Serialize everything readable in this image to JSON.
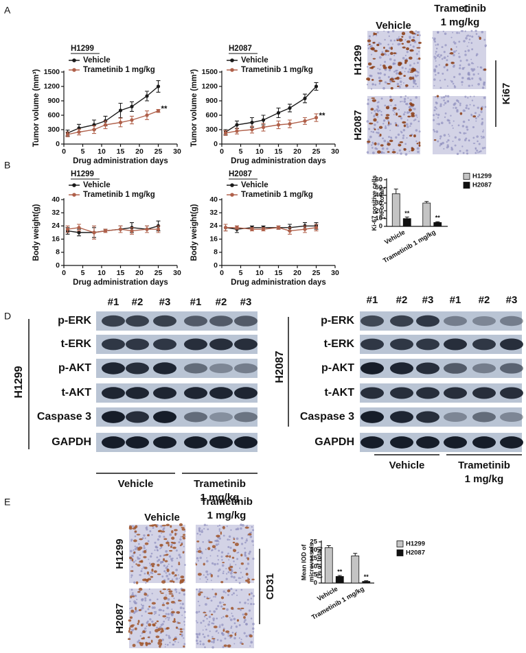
{
  "panel_labels": [
    "A",
    "B",
    "C",
    "D",
    "E"
  ],
  "chart_data": [
    {
      "type": "line",
      "title": "H1299",
      "xlabel": "Drug administration days",
      "ylabel": "Tumor volume (mm³)",
      "x": [
        1,
        4,
        8,
        11,
        15,
        18,
        22,
        25
      ],
      "xlim": [
        0,
        30
      ],
      "xticks": [
        0,
        5,
        10,
        15,
        20,
        25,
        30
      ],
      "ylim": [
        0,
        1500
      ],
      "yticks": [
        0,
        300,
        600,
        900,
        1200,
        1500
      ],
      "annotation": "**",
      "series": [
        {
          "name": "Vehicle",
          "color": "#1a1a1a",
          "values": [
            230,
            330,
            400,
            480,
            700,
            780,
            1000,
            1200
          ],
          "errors": [
            60,
            80,
            100,
            100,
            150,
            100,
            100,
            120
          ]
        },
        {
          "name": "Trametinib 1 mg/kg",
          "color": "#b0604a",
          "values": [
            200,
            250,
            300,
            400,
            450,
            500,
            600,
            690
          ],
          "errors": [
            50,
            60,
            80,
            80,
            90,
            80,
            90,
            30
          ]
        }
      ]
    },
    {
      "type": "line",
      "title": "H2087",
      "xlabel": "Drug administration days",
      "ylabel": "Tumor volume (mm³)",
      "x": [
        1,
        4,
        8,
        11,
        15,
        18,
        22,
        25
      ],
      "xlim": [
        0,
        30
      ],
      "xticks": [
        0,
        5,
        10,
        15,
        20,
        25,
        30
      ],
      "ylim": [
        0,
        1500
      ],
      "yticks": [
        0,
        300,
        600,
        900,
        1200,
        1500
      ],
      "annotation": "**",
      "series": [
        {
          "name": "Vehicle",
          "color": "#1a1a1a",
          "values": [
            250,
            400,
            450,
            500,
            650,
            750,
            950,
            1200
          ],
          "errors": [
            50,
            80,
            100,
            100,
            100,
            80,
            90,
            80
          ]
        },
        {
          "name": "Trametinib 1 mg/kg",
          "color": "#b0604a",
          "values": [
            230,
            270,
            300,
            350,
            400,
            420,
            480,
            550
          ],
          "errors": [
            50,
            60,
            70,
            80,
            80,
            80,
            70,
            80
          ]
        }
      ]
    },
    {
      "type": "line",
      "title": "H1299",
      "xlabel": "Drug administration days",
      "ylabel": "Body weight(g)",
      "x": [
        1,
        4,
        8,
        11,
        15,
        18,
        22,
        25
      ],
      "xlim": [
        0,
        30
      ],
      "xticks": [
        0,
        5,
        10,
        15,
        20,
        25,
        30
      ],
      "ylim": [
        0,
        40
      ],
      "yticks": [
        0,
        8,
        16,
        24,
        32,
        40
      ],
      "series": [
        {
          "name": "Vehicle",
          "color": "#1a1a1a",
          "values": [
            21,
            20,
            20,
            21,
            22,
            23,
            22,
            24
          ],
          "errors": [
            2,
            2,
            3,
            1,
            2,
            3,
            2,
            3
          ]
        },
        {
          "name": "Trametinib 1 mg/kg",
          "color": "#b0604a",
          "values": [
            22,
            23,
            20,
            21,
            22,
            21,
            22,
            22
          ],
          "errors": [
            2,
            2,
            4,
            1,
            2,
            2,
            2,
            2
          ]
        }
      ]
    },
    {
      "type": "line",
      "title": "H2087",
      "xlabel": "Drug administration days",
      "ylabel": "Body weight(g)",
      "x": [
        1,
        4,
        8,
        11,
        15,
        18,
        22,
        25
      ],
      "xlim": [
        0,
        30
      ],
      "xticks": [
        0,
        5,
        10,
        15,
        20,
        25,
        30
      ],
      "ylim": [
        0,
        40
      ],
      "yticks": [
        0,
        8,
        16,
        24,
        32,
        40
      ],
      "series": [
        {
          "name": "Vehicle",
          "color": "#1a1a1a",
          "values": [
            23,
            22,
            23,
            23,
            23,
            23,
            24,
            24
          ],
          "errors": [
            2,
            2,
            1,
            1,
            1,
            2,
            2,
            2
          ]
        },
        {
          "name": "Trametinib 1 mg/kg",
          "color": "#b0604a",
          "values": [
            23,
            23,
            22,
            22,
            23,
            21,
            22,
            23
          ],
          "errors": [
            2,
            1,
            1,
            1,
            1,
            2,
            2,
            2
          ]
        }
      ]
    },
    {
      "type": "bar",
      "ylabel": [
        "Ki-67 positive cells",
        "(% of total)"
      ],
      "categories": [
        "Vehicle",
        "Trametinib 1 mg/kg"
      ],
      "ylim": [
        0,
        60
      ],
      "yticks": [
        0,
        10,
        20,
        30,
        40,
        50,
        60
      ],
      "annotation": "**",
      "series": [
        {
          "name": "H1299",
          "color": "#c4c4c4",
          "values": [
            42,
            30
          ],
          "errors": [
            6,
            2
          ]
        },
        {
          "name": "H2087",
          "color": "#111111",
          "values": [
            10,
            5
          ],
          "errors": [
            2,
            1
          ]
        }
      ]
    },
    {
      "type": "bar",
      "ylabel": [
        "Mean IOD of",
        "microvessels",
        "(% of total)"
      ],
      "categories": [
        "Vehicle",
        "Trametinib 1 mg/kg"
      ],
      "ylim": [
        0,
        25
      ],
      "yticks": [
        0,
        5,
        10,
        15,
        20,
        25
      ],
      "annotation": "**",
      "series": [
        {
          "name": "H1299",
          "color": "#c4c4c4",
          "values": [
            21.5,
            16.5
          ],
          "errors": [
            1.2,
            1.5
          ]
        },
        {
          "name": "H2087",
          "color": "#111111",
          "values": [
            4,
            1
          ],
          "errors": [
            0.6,
            0.4
          ]
        }
      ]
    }
  ],
  "ihc_c": {
    "headers": [
      "Vehicle",
      "Trametinib",
      "1 mg/kg"
    ],
    "rows": [
      "H1299",
      "H2087"
    ],
    "marker": "Ki67"
  },
  "ihc_e": {
    "headers": [
      "Vehicle",
      "Trametinib",
      "1 mg/kg"
    ],
    "rows": [
      "H1299",
      "H2087"
    ],
    "marker": "CD31"
  },
  "western_blots": [
    {
      "cell_line": "H1299",
      "lanes": [
        "#1",
        "#2",
        "#3",
        "#1",
        "#2",
        "#3"
      ],
      "proteins": [
        "p-ERK",
        "t-ERK",
        "p-AKT",
        "t-AKT",
        "Caspase 3",
        "GAPDH"
      ],
      "groups": [
        "Vehicle",
        "Trametinib",
        "1 mg/kg"
      ]
    },
    {
      "cell_line": "H2087",
      "lanes": [
        "#1",
        "#2",
        "#3",
        "#1",
        "#2",
        "#3"
      ],
      "proteins": [
        "p-ERK",
        "t-ERK",
        "p-AKT",
        "t-AKT",
        "Caspase 3",
        "GAPDH"
      ],
      "groups": [
        "Vehicle",
        "Trametinib",
        "1 mg/kg"
      ]
    }
  ]
}
